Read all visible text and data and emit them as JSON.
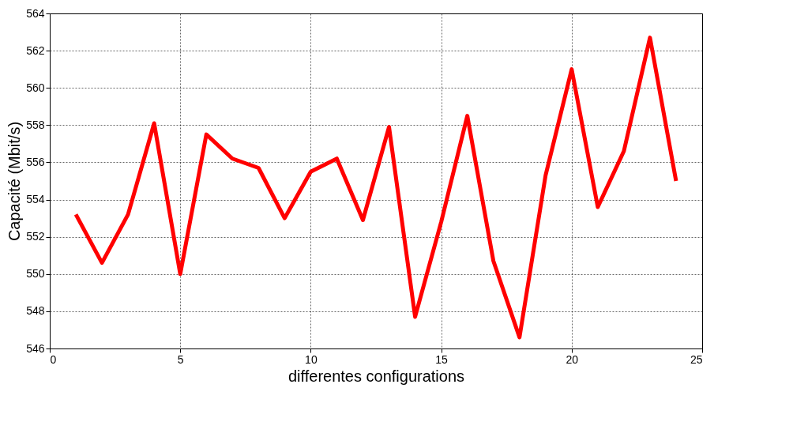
{
  "chart_data": {
    "type": "line",
    "xlabel": "differentes configurations",
    "ylabel": "Capacité (Mbit/s)",
    "x": [
      1,
      2,
      3,
      4,
      5,
      6,
      7,
      8,
      9,
      10,
      11,
      12,
      13,
      14,
      15,
      16,
      17,
      18,
      19,
      20,
      21,
      22,
      23,
      24
    ],
    "series": [
      {
        "color": "#ff0000",
        "values": [
          553.2,
          550.6,
          553.2,
          558.1,
          550.0,
          557.5,
          556.2,
          555.7,
          553.0,
          555.5,
          556.2,
          552.9,
          557.9,
          547.7,
          552.8,
          558.5,
          550.7,
          546.6,
          555.3,
          561.0,
          553.6,
          556.6,
          562.7,
          555.0
        ]
      }
    ],
    "xlim": [
      0,
      25
    ],
    "xticks": [
      0,
      5,
      10,
      15,
      20,
      25
    ],
    "ylim": [
      546,
      564
    ],
    "yticks": [
      546,
      548,
      550,
      552,
      554,
      556,
      558,
      560,
      562,
      564
    ],
    "grid": true,
    "marker": "none",
    "line_style": "solid"
  }
}
